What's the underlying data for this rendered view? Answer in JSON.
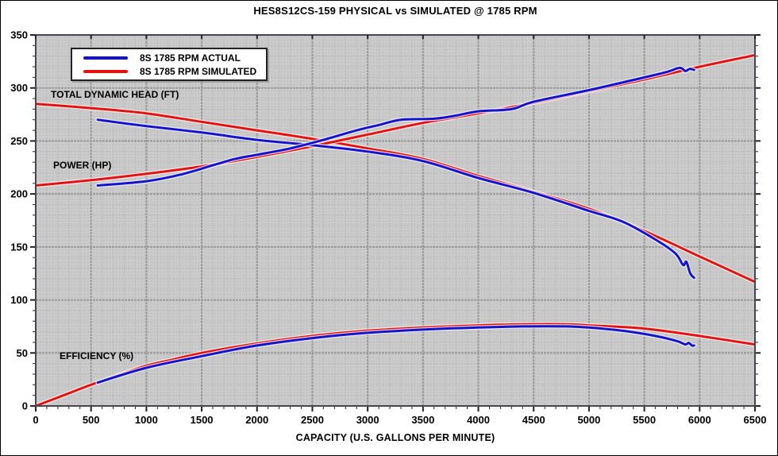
{
  "title": "HES8S12CS-159 PHYSICAL vs SIMULATED @ 1785 RPM",
  "colors": {
    "actual": "#1414d0",
    "simulated": "#e51212",
    "halo": "#f5f5f2",
    "plot_bg": "#c9c9c9",
    "grid_major": "#999999",
    "grid_minor": "#aeaeae",
    "frame": "#46464e",
    "tick": "#222222",
    "text": "#000000"
  },
  "legend": {
    "items": [
      {
        "label": "8S 1785 RPM ACTUAL",
        "series": "actual"
      },
      {
        "label": "8S 1785 RPM SIMULATED",
        "series": "simulated"
      }
    ]
  },
  "curve_labels": [
    {
      "text": "TOTAL DYNAMIC HEAD (FT)",
      "x": 63,
      "y": 111
    },
    {
      "text": "POWER (HP)",
      "x": 66,
      "y": 200
    },
    {
      "text": "EFFICIENCY (%)",
      "x": 74,
      "y": 440
    }
  ],
  "chart_data": {
    "type": "line",
    "title": "HES8S12CS-159 PHYSICAL vs SIMULATED @ 1785 RPM",
    "xlabel": "CAPACITY (U.S. GALLONS PER MINUTE)",
    "ylabel": "",
    "grid": true,
    "legend_position": "top-left",
    "x_axis": {
      "min": 0,
      "max": 6500,
      "major_step": 500,
      "minor_step": 100,
      "tick_labels": [
        "0",
        "500",
        "1000",
        "1500",
        "2000",
        "2500",
        "3000",
        "3500",
        "4000",
        "4500",
        "5000",
        "5500",
        "6000",
        "6500"
      ]
    },
    "y_axis": {
      "min": 0,
      "max": 350,
      "major_step": 50,
      "minor_step": 10,
      "tick_labels": [
        "0",
        "50",
        "100",
        "150",
        "200",
        "250",
        "300",
        "350"
      ]
    },
    "series": [
      {
        "name": "TOTAL DYNAMIC HEAD (FT) - SIMULATED",
        "color_key": "simulated",
        "points": [
          [
            0,
            285
          ],
          [
            500,
            281
          ],
          [
            1000,
            276
          ],
          [
            1500,
            268
          ],
          [
            2000,
            260
          ],
          [
            2500,
            252
          ],
          [
            3000,
            243
          ],
          [
            3500,
            233
          ],
          [
            4000,
            217
          ],
          [
            4500,
            202
          ],
          [
            5000,
            186
          ],
          [
            5500,
            165
          ],
          [
            6000,
            141
          ],
          [
            6500,
            117
          ]
        ]
      },
      {
        "name": "TOTAL DYNAMIC HEAD (FT) - ACTUAL",
        "color_key": "actual",
        "points": [
          [
            560,
            270
          ],
          [
            1000,
            264
          ],
          [
            1500,
            258
          ],
          [
            2000,
            251
          ],
          [
            2500,
            246
          ],
          [
            3000,
            240
          ],
          [
            3500,
            231
          ],
          [
            4000,
            215
          ],
          [
            4500,
            201
          ],
          [
            5000,
            184
          ],
          [
            5300,
            174
          ],
          [
            5600,
            157
          ],
          [
            5780,
            144
          ],
          [
            5850,
            133
          ],
          [
            5880,
            136
          ],
          [
            5915,
            125
          ],
          [
            5950,
            121
          ]
        ]
      },
      {
        "name": "POWER (HP) - SIMULATED",
        "color_key": "simulated",
        "points": [
          [
            0,
            208
          ],
          [
            500,
            213
          ],
          [
            1000,
            219
          ],
          [
            1500,
            226
          ],
          [
            2000,
            235
          ],
          [
            2500,
            245
          ],
          [
            3000,
            256
          ],
          [
            3500,
            267
          ],
          [
            4000,
            276
          ],
          [
            4500,
            286
          ],
          [
            5000,
            297
          ],
          [
            5500,
            308
          ],
          [
            6000,
            320
          ],
          [
            6500,
            331
          ]
        ]
      },
      {
        "name": "POWER (HP) - ACTUAL",
        "color_key": "actual",
        "points": [
          [
            560,
            208
          ],
          [
            1000,
            212
          ],
          [
            1300,
            218
          ],
          [
            1600,
            227
          ],
          [
            1800,
            233
          ],
          [
            2000,
            237
          ],
          [
            2300,
            243
          ],
          [
            2600,
            251
          ],
          [
            2900,
            260
          ],
          [
            3100,
            265
          ],
          [
            3300,
            270
          ],
          [
            3600,
            271
          ],
          [
            3800,
            274
          ],
          [
            4000,
            278
          ],
          [
            4300,
            280
          ],
          [
            4500,
            287
          ],
          [
            5000,
            298
          ],
          [
            5500,
            310
          ],
          [
            5700,
            315
          ],
          [
            5820,
            319
          ],
          [
            5870,
            316
          ],
          [
            5910,
            318
          ],
          [
            5950,
            317
          ]
        ]
      },
      {
        "name": "EFFICIENCY (%) - SIMULATED",
        "color_key": "simulated",
        "points": [
          [
            0,
            0
          ],
          [
            250,
            10
          ],
          [
            500,
            20
          ],
          [
            750,
            29
          ],
          [
            1000,
            38
          ],
          [
            1250,
            44
          ],
          [
            1500,
            50
          ],
          [
            2000,
            59
          ],
          [
            2500,
            66
          ],
          [
            3000,
            71
          ],
          [
            3500,
            74
          ],
          [
            4000,
            76
          ],
          [
            4400,
            77
          ],
          [
            4800,
            77
          ],
          [
            5000,
            76
          ],
          [
            5500,
            73
          ],
          [
            6000,
            66
          ],
          [
            6500,
            58
          ]
        ]
      },
      {
        "name": "EFFICIENCY (%) - ACTUAL",
        "color_key": "actual",
        "points": [
          [
            560,
            22
          ],
          [
            1000,
            36
          ],
          [
            1500,
            47
          ],
          [
            2000,
            57
          ],
          [
            2500,
            64
          ],
          [
            3000,
            69
          ],
          [
            3500,
            72
          ],
          [
            4000,
            74
          ],
          [
            4400,
            75
          ],
          [
            4800,
            75
          ],
          [
            5000,
            74
          ],
          [
            5300,
            71
          ],
          [
            5600,
            66
          ],
          [
            5800,
            61
          ],
          [
            5870,
            58
          ],
          [
            5900,
            59.5
          ],
          [
            5930,
            57
          ],
          [
            5950,
            57
          ]
        ]
      }
    ]
  }
}
